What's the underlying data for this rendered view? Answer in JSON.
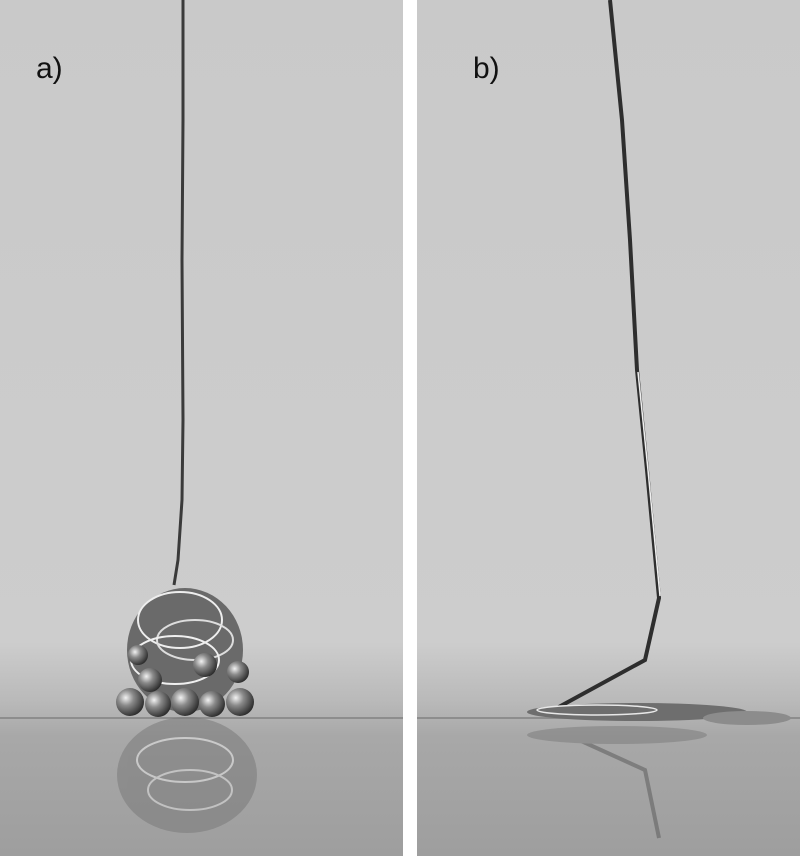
{
  "panels": [
    {
      "label": "a)"
    },
    {
      "label": "b)"
    }
  ],
  "colors": {
    "background": "#c8c8c8",
    "surface": "#a9a9a9",
    "divider": "#ffffff",
    "label": "#111111"
  }
}
